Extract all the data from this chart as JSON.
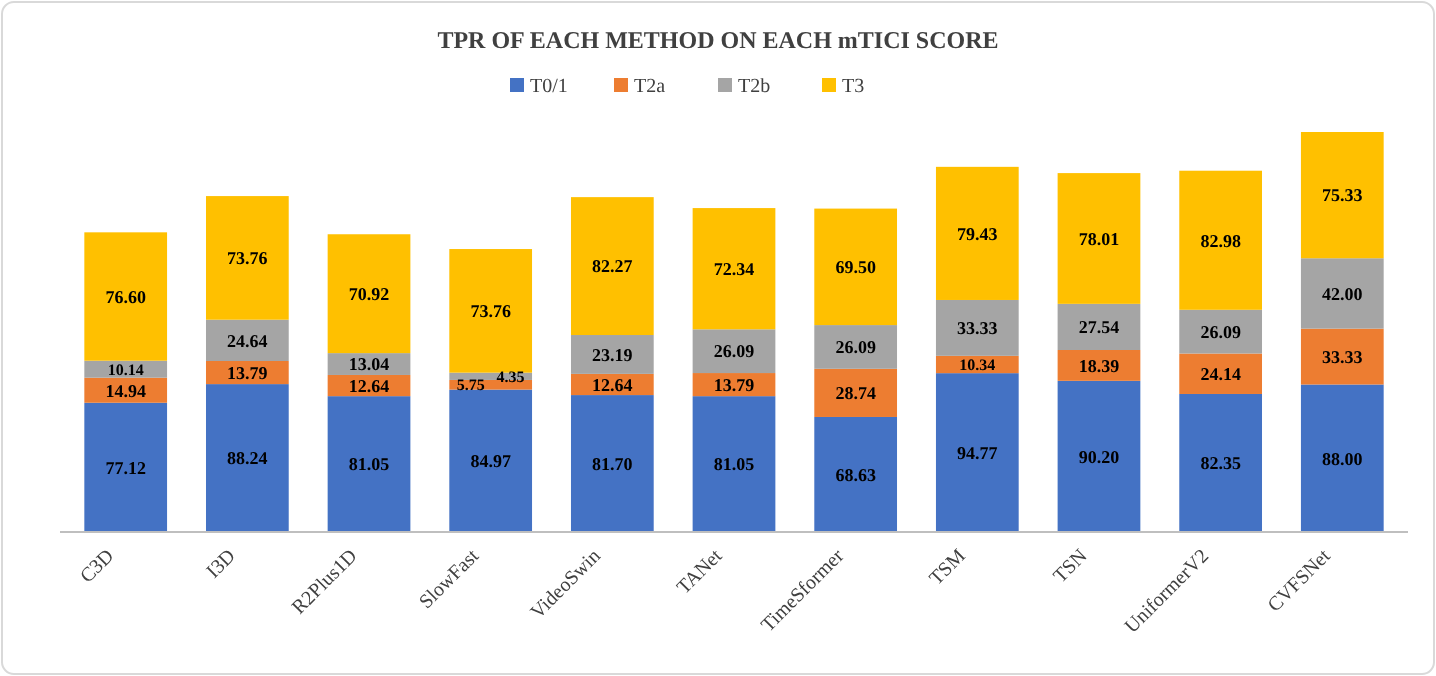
{
  "chart_data": {
    "type": "bar",
    "title": "TPR OF EACH METHOD ON EACH mTICI SCORE",
    "stacked": true,
    "legend": "top",
    "categories": [
      "C3D",
      "I3D",
      "R2Plus1D",
      "SlowFast",
      "VideoSwin",
      "TANet",
      "TimeSformer",
      "TSM",
      "TSN",
      "UniformerV2",
      "CVFSNet"
    ],
    "series": [
      {
        "name": "T0/1",
        "color": "#4472c4",
        "values": [
          77.12,
          88.24,
          81.05,
          84.97,
          81.7,
          81.05,
          68.63,
          94.77,
          90.2,
          82.35,
          88.0
        ],
        "value_labels": [
          "77.12",
          "88.24",
          "81.05",
          "84.97",
          "81.70",
          "81.05",
          "68.63",
          "94.77",
          "90.20",
          "82.35",
          "88.00"
        ]
      },
      {
        "name": "T2a",
        "color": "#ed7d31",
        "values": [
          14.94,
          13.79,
          12.64,
          5.75,
          12.64,
          13.79,
          28.74,
          10.34,
          18.39,
          24.14,
          33.33
        ],
        "value_labels": [
          "14.94",
          "13.79",
          "12.64",
          "5.75",
          "12.64",
          "13.79",
          "28.74",
          "10.34",
          "18.39",
          "24.14",
          "33.33"
        ]
      },
      {
        "name": "T2b",
        "color": "#a5a5a5",
        "values": [
          10.14,
          24.64,
          13.04,
          4.35,
          23.19,
          26.09,
          26.09,
          33.33,
          27.54,
          26.09,
          42.0
        ],
        "value_labels": [
          "10.14",
          "24.64",
          "13.04",
          "4.35",
          "23.19",
          "26.09",
          "26.09",
          "33.33",
          "27.54",
          "26.09",
          "42.00"
        ]
      },
      {
        "name": "T3",
        "color": "#ffc000",
        "values": [
          76.6,
          73.76,
          70.92,
          73.76,
          82.27,
          72.34,
          69.5,
          79.43,
          78.01,
          82.98,
          75.33
        ],
        "value_labels": [
          "76.60",
          "73.76",
          "70.92",
          "73.76",
          "82.27",
          "72.34",
          "69.50",
          "79.43",
          "78.01",
          "82.98",
          "75.33"
        ]
      }
    ]
  }
}
